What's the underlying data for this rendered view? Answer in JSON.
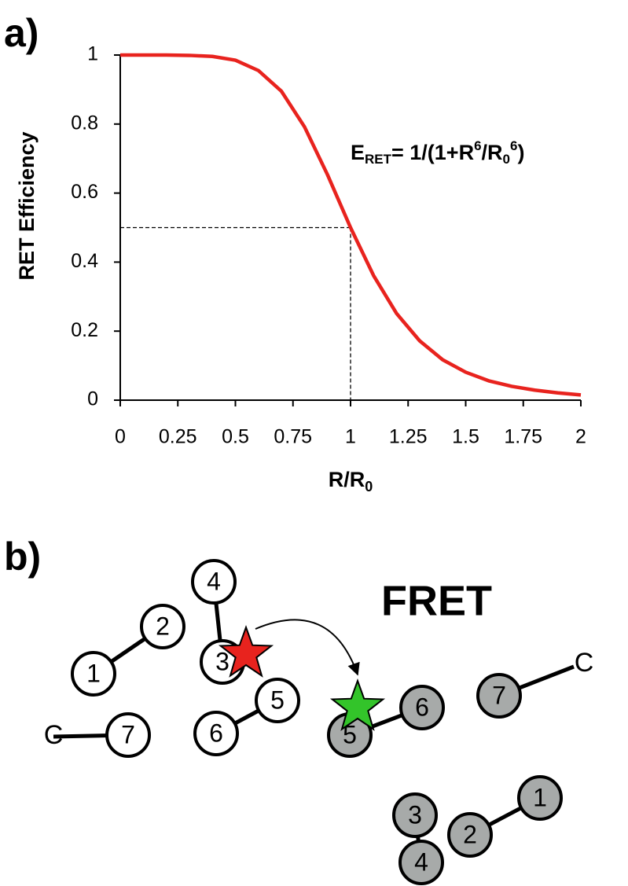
{
  "chart_data": {
    "type": "line",
    "panel_label": "a)",
    "ylabel": "RET Efficiency",
    "xlabel_parts": [
      "R/R",
      "0"
    ],
    "annotation_parts": [
      "E",
      "RET",
      "= 1/(1+R",
      "6",
      "/R",
      "0",
      "6",
      ")"
    ],
    "x": [
      0,
      0.1,
      0.2,
      0.3,
      0.4,
      0.5,
      0.6,
      0.7,
      0.8,
      0.9,
      1,
      1.1,
      1.2,
      1.3,
      1.4,
      1.5,
      1.6,
      1.7,
      1.8,
      1.9,
      2
    ],
    "series": [
      {
        "color": "#e8231e",
        "values": [
          1,
          1,
          1,
          0.999,
          0.996,
          0.985,
          0.955,
          0.895,
          0.792,
          0.653,
          0.5,
          0.361,
          0.251,
          0.172,
          0.117,
          0.081,
          0.056,
          0.04,
          0.029,
          0.021,
          0.015
        ]
      }
    ],
    "reference_point": {
      "x": 1,
      "y": 0.5
    },
    "xlim": [
      0,
      2
    ],
    "xticks": [
      0,
      0.25,
      0.5,
      0.75,
      1,
      1.25,
      1.5,
      1.75,
      2
    ],
    "ylim": [
      0,
      1
    ],
    "yticks": [
      0,
      0.2,
      0.4,
      0.6,
      0.8,
      1
    ],
    "grid": false
  },
  "diagram": {
    "panel_label": "b)",
    "title": "FRET",
    "nodes": [
      {
        "label": "4",
        "fill": "#ffffff"
      },
      {
        "label": "2",
        "fill": "#ffffff"
      },
      {
        "label": "3",
        "fill": "#ffffff"
      },
      {
        "label": "1",
        "fill": "#ffffff"
      },
      {
        "label": "5",
        "fill": "#ffffff"
      },
      {
        "label": "6",
        "fill": "#ffffff"
      },
      {
        "label": "7",
        "fill": "#ffffff"
      },
      {
        "label": "6",
        "fill": "#a7aaa9"
      },
      {
        "label": "7",
        "fill": "#a7aaa9"
      },
      {
        "label": "5",
        "fill": "#a7aaa9"
      },
      {
        "label": "3",
        "fill": "#a7aaa9"
      },
      {
        "label": "1",
        "fill": "#a7aaa9"
      },
      {
        "label": "2",
        "fill": "#a7aaa9"
      },
      {
        "label": "4",
        "fill": "#a7aaa9"
      }
    ],
    "termini": [
      "C",
      "C"
    ]
  }
}
